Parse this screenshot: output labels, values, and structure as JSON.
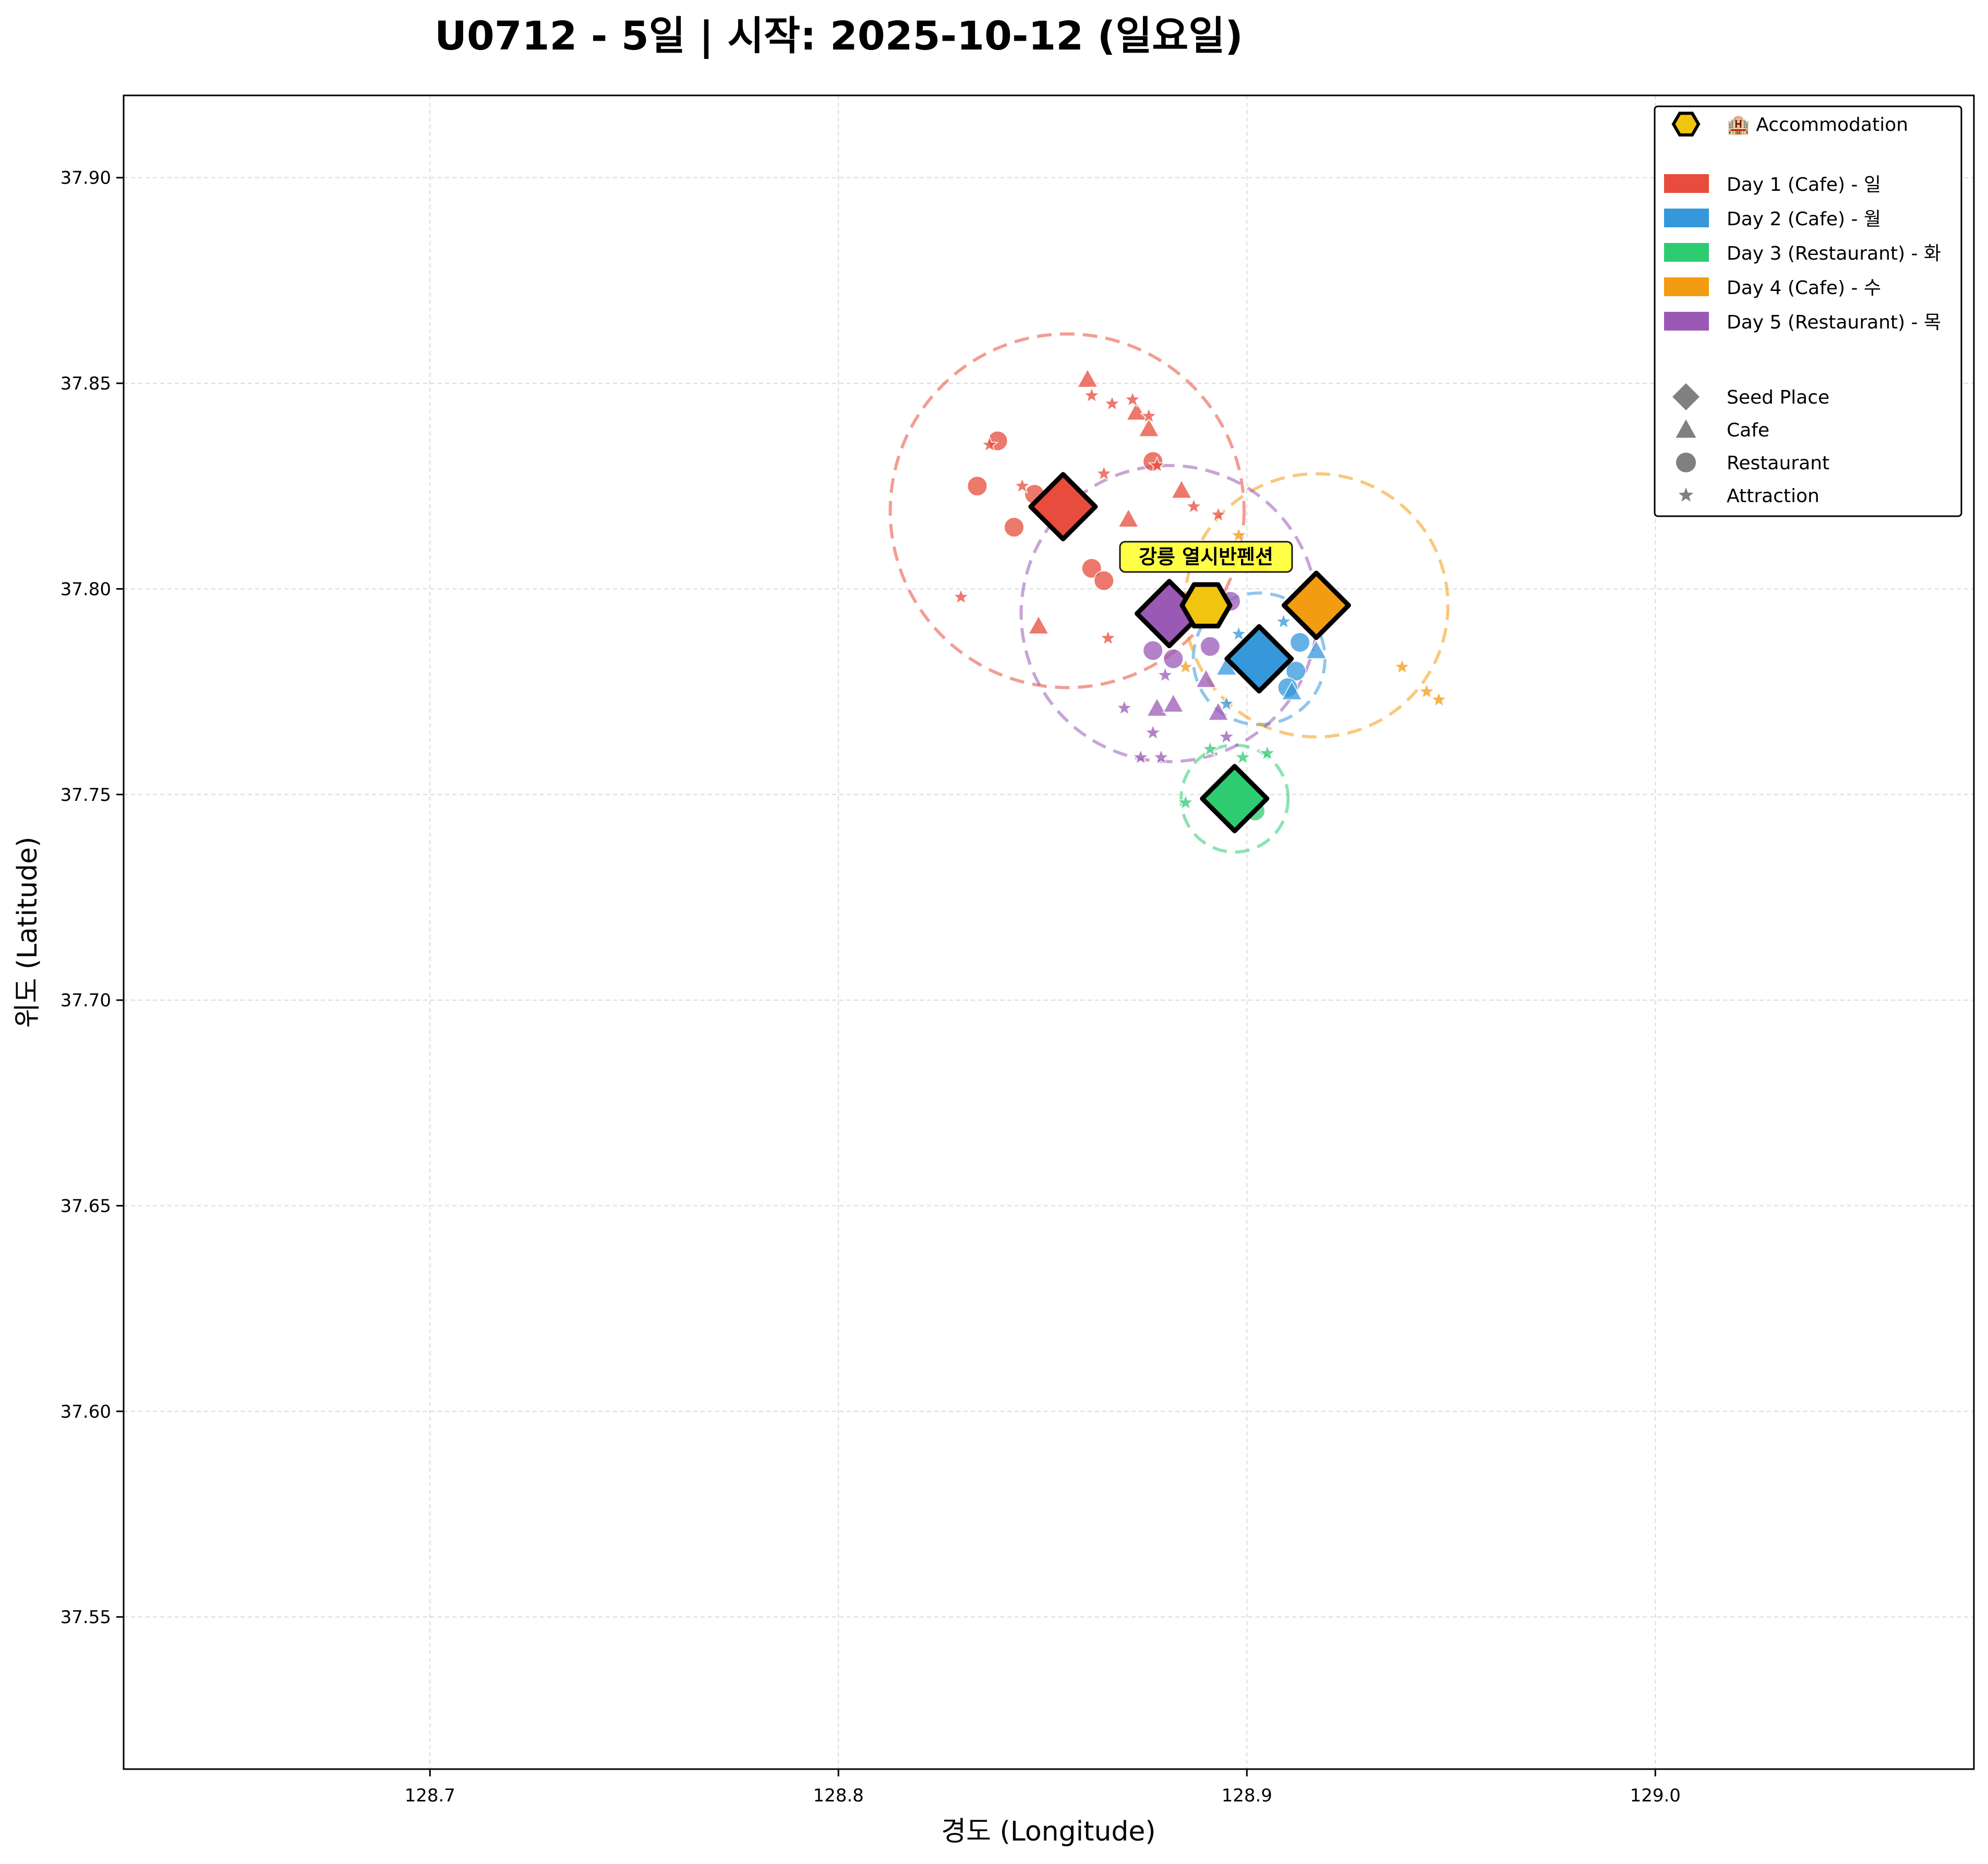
{
  "chart_data": {
    "type": "scatter",
    "title": "U0712 - 5일 | 시작: 2025-10-12 (일요일)",
    "xlabel": "경도 (Longitude)",
    "ylabel": "위도 (Latitude)",
    "xlim": [
      128.625,
      129.078
    ],
    "ylim": [
      37.513,
      37.92
    ],
    "xticks": [
      128.7,
      128.8,
      128.9,
      129.0
    ],
    "xtick_labels": [
      "128.7",
      "128.8",
      "128.9",
      "129.0"
    ],
    "yticks": [
      37.55,
      37.6,
      37.65,
      37.7,
      37.75,
      37.8,
      37.85,
      37.9
    ],
    "ytick_labels": [
      "37.55",
      "37.60",
      "37.65",
      "37.70",
      "37.75",
      "37.80",
      "37.85",
      "37.90"
    ],
    "grid": true,
    "legend_position": "top-right",
    "accommodation": {
      "label": "강릉 열시반펜션",
      "x": 128.89,
      "y": 37.796,
      "color": "#f1c40f",
      "legend_label": "🏨 Accommodation"
    },
    "days": [
      {
        "name": "Day 1 (Cafe) - 일",
        "color": "#e74c3c",
        "seed": {
          "x": 128.855,
          "y": 37.82
        },
        "circle": {
          "cx": 128.856,
          "cy": 37.819,
          "r_deg": 0.043
        },
        "places": [
          {
            "type": "restaurant",
            "x": 128.839,
            "y": 37.836
          },
          {
            "type": "restaurant",
            "x": 128.834,
            "y": 37.825
          },
          {
            "type": "restaurant",
            "x": 128.843,
            "y": 37.815
          },
          {
            "type": "restaurant",
            "x": 128.848,
            "y": 37.823
          },
          {
            "type": "restaurant",
            "x": 128.862,
            "y": 37.805
          },
          {
            "type": "restaurant",
            "x": 128.865,
            "y": 37.802
          },
          {
            "type": "restaurant",
            "x": 128.877,
            "y": 37.831
          },
          {
            "type": "cafe",
            "x": 128.861,
            "y": 37.851
          },
          {
            "type": "cafe",
            "x": 128.873,
            "y": 37.843
          },
          {
            "type": "cafe",
            "x": 128.876,
            "y": 37.839
          },
          {
            "type": "cafe",
            "x": 128.871,
            "y": 37.817
          },
          {
            "type": "cafe",
            "x": 128.884,
            "y": 37.824
          },
          {
            "type": "cafe",
            "x": 128.849,
            "y": 37.791
          },
          {
            "type": "attraction",
            "x": 128.837,
            "y": 37.835
          },
          {
            "type": "attraction",
            "x": 128.862,
            "y": 37.847
          },
          {
            "type": "attraction",
            "x": 128.867,
            "y": 37.845
          },
          {
            "type": "attraction",
            "x": 128.872,
            "y": 37.846
          },
          {
            "type": "attraction",
            "x": 128.876,
            "y": 37.842
          },
          {
            "type": "attraction",
            "x": 128.878,
            "y": 37.83
          },
          {
            "type": "attraction",
            "x": 128.845,
            "y": 37.825
          },
          {
            "type": "attraction",
            "x": 128.865,
            "y": 37.828
          },
          {
            "type": "attraction",
            "x": 128.887,
            "y": 37.82
          },
          {
            "type": "attraction",
            "x": 128.893,
            "y": 37.818
          },
          {
            "type": "attraction",
            "x": 128.83,
            "y": 37.798
          },
          {
            "type": "attraction",
            "x": 128.866,
            "y": 37.788
          }
        ]
      },
      {
        "name": "Day 2 (Cafe) - 월",
        "color": "#3498db",
        "seed": {
          "x": 128.903,
          "y": 37.783
        },
        "circle": {
          "cx": 128.903,
          "cy": 37.783,
          "r_deg": 0.016
        },
        "places": [
          {
            "type": "restaurant",
            "x": 128.913,
            "y": 37.787
          },
          {
            "type": "restaurant",
            "x": 128.912,
            "y": 37.78
          },
          {
            "type": "restaurant",
            "x": 128.91,
            "y": 37.776
          },
          {
            "type": "cafe",
            "x": 128.917,
            "y": 37.785
          },
          {
            "type": "cafe",
            "x": 128.895,
            "y": 37.781
          },
          {
            "type": "cafe",
            "x": 128.911,
            "y": 37.775
          },
          {
            "type": "attraction",
            "x": 128.898,
            "y": 37.789
          },
          {
            "type": "attraction",
            "x": 128.909,
            "y": 37.792
          },
          {
            "type": "attraction",
            "x": 128.895,
            "y": 37.772
          }
        ]
      },
      {
        "name": "Day 3 (Restaurant) - 화",
        "color": "#2ecc71",
        "seed": {
          "x": 128.897,
          "y": 37.749
        },
        "circle": {
          "cx": 128.897,
          "cy": 37.749,
          "r_deg": 0.013
        },
        "places": [
          {
            "type": "restaurant",
            "x": 128.902,
            "y": 37.746
          },
          {
            "type": "attraction",
            "x": 128.885,
            "y": 37.748
          },
          {
            "type": "attraction",
            "x": 128.891,
            "y": 37.761
          },
          {
            "type": "attraction",
            "x": 128.899,
            "y": 37.759
          },
          {
            "type": "attraction",
            "x": 128.905,
            "y": 37.76
          }
        ]
      },
      {
        "name": "Day 4 (Cafe) - 수",
        "color": "#f39c12",
        "seed": {
          "x": 128.917,
          "y": 37.796
        },
        "circle": {
          "cx": 128.917,
          "cy": 37.796,
          "r_deg": 0.032
        },
        "places": [
          {
            "type": "cafe",
            "x": 128.903,
            "y": 37.806
          },
          {
            "type": "attraction",
            "x": 128.898,
            "y": 37.813
          },
          {
            "type": "attraction",
            "x": 128.938,
            "y": 37.781
          },
          {
            "type": "attraction",
            "x": 128.944,
            "y": 37.775
          },
          {
            "type": "attraction",
            "x": 128.947,
            "y": 37.773
          },
          {
            "type": "attraction",
            "x": 128.885,
            "y": 37.781
          }
        ]
      },
      {
        "name": "Day 5 (Restaurant) - 목",
        "color": "#9b59b6",
        "seed": {
          "x": 128.881,
          "y": 37.794
        },
        "circle": {
          "cx": 128.881,
          "cy": 37.794,
          "r_deg": 0.036
        },
        "places": [
          {
            "type": "restaurant",
            "x": 128.877,
            "y": 37.785
          },
          {
            "type": "restaurant",
            "x": 128.882,
            "y": 37.783
          },
          {
            "type": "restaurant",
            "x": 128.891,
            "y": 37.786
          },
          {
            "type": "restaurant",
            "x": 128.896,
            "y": 37.797
          },
          {
            "type": "cafe",
            "x": 128.878,
            "y": 37.771
          },
          {
            "type": "cafe",
            "x": 128.882,
            "y": 37.772
          },
          {
            "type": "cafe",
            "x": 128.89,
            "y": 37.778
          },
          {
            "type": "cafe",
            "x": 128.893,
            "y": 37.77
          },
          {
            "type": "attraction",
            "x": 128.88,
            "y": 37.779
          },
          {
            "type": "attraction",
            "x": 128.87,
            "y": 37.771
          },
          {
            "type": "attraction",
            "x": 128.877,
            "y": 37.765
          },
          {
            "type": "attraction",
            "x": 128.874,
            "y": 37.759
          },
          {
            "type": "attraction",
            "x": 128.879,
            "y": 37.759
          },
          {
            "type": "attraction",
            "x": 128.895,
            "y": 37.764
          }
        ]
      }
    ],
    "legend": {
      "accommodation_label": "🏨 Accommodation",
      "day_labels": [
        "Day 1 (Cafe) - 일",
        "Day 2 (Cafe) - 월",
        "Day 3 (Restaurant) - 화",
        "Day 4 (Cafe) - 수",
        "Day 5 (Restaurant) - 목"
      ],
      "shape_labels": [
        "Seed Place",
        "Cafe",
        "Restaurant",
        "Attraction"
      ],
      "shape_color": "#808080"
    }
  }
}
